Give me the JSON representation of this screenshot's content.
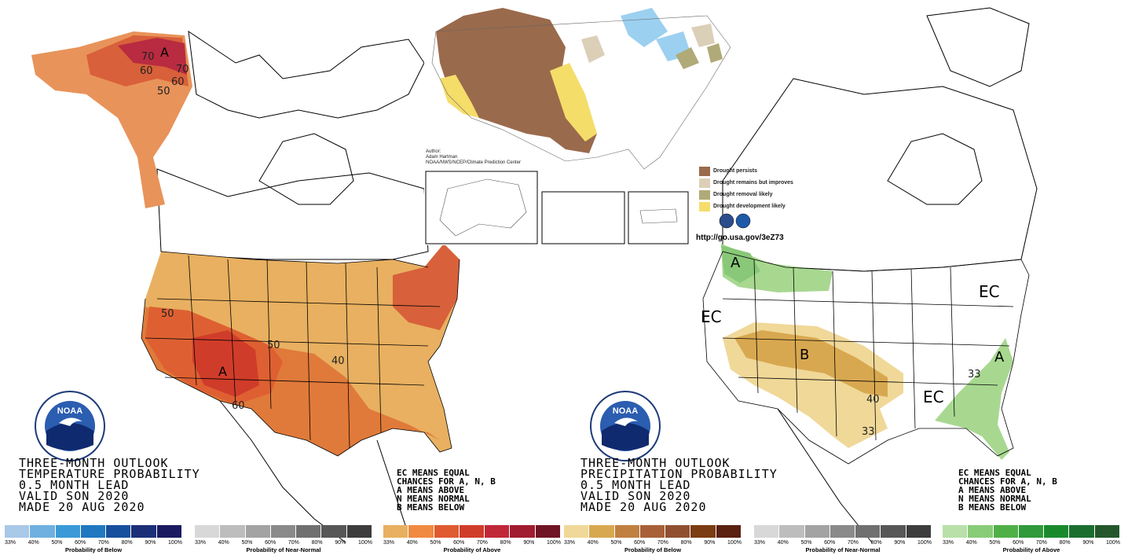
{
  "temperature_map": {
    "title_lines": [
      "THREE-MONTH OUTLOOK",
      "TEMPERATURE PROBABILITY",
      "0.5 MONTH LEAD",
      "VALID SON 2020",
      "MADE 20 AUG 2020"
    ],
    "legend_lines": [
      "EC MEANS EQUAL",
      "CHANCES FOR A, N, B",
      "A MEANS ABOVE",
      "N MEANS NORMAL",
      "B MEANS BELOW"
    ],
    "center_labels": [
      "A",
      "A"
    ],
    "contour_labels": [
      "70",
      "60",
      "70",
      "60",
      "50",
      "50",
      "50",
      "40",
      "60"
    ]
  },
  "precipitation_map": {
    "title_lines": [
      "THREE-MONTH OUTLOOK",
      "PRECIPITATION PROBABILITY",
      "0.5 MONTH LEAD",
      "VALID SON 2020",
      "MADE 20 AUG 2020"
    ],
    "legend_lines": [
      "EC MEANS EQUAL",
      "CHANCES FOR A, N, B",
      "A MEANS ABOVE",
      "N MEANS NORMAL",
      "B MEANS BELOW"
    ],
    "center_labels": [
      "A",
      "B",
      "A",
      "EC",
      "EC",
      "EC"
    ],
    "contour_labels": [
      "40",
      "33",
      "33"
    ]
  },
  "color_scales": [
    {
      "caption": "Probability of Below",
      "ticks": [
        "33%",
        "40%",
        "50%",
        "60%",
        "70%",
        "80%",
        "90%",
        "100%"
      ],
      "colors": [
        "#a8c8e8",
        "#6fb0e0",
        "#3a9ad8",
        "#1f78c0",
        "#17509c",
        "#1c2f78",
        "#1a1a60"
      ]
    },
    {
      "caption": "Probability of Near-Normal",
      "ticks": [
        "33%",
        "40%",
        "50%",
        "60%",
        "70%",
        "80%",
        "90%",
        "100%"
      ],
      "colors": [
        "#d8d8d8",
        "#bdbdbd",
        "#a3a3a3",
        "#8a8a8a",
        "#707070",
        "#575757",
        "#3d3d3d"
      ]
    },
    {
      "caption": "Probability of Above",
      "ticks": [
        "33%",
        "40%",
        "50%",
        "60%",
        "70%",
        "80%",
        "90%",
        "100%"
      ],
      "colors": [
        "#e8b060",
        "#f08a40",
        "#e05a30",
        "#d03c2a",
        "#c02838",
        "#a01c30",
        "#6e1424"
      ]
    },
    {
      "caption": "Probability of Below",
      "ticks": [
        "33%",
        "40%",
        "50%",
        "60%",
        "70%",
        "80%",
        "90%",
        "100%"
      ],
      "colors": [
        "#f0d898",
        "#d8a850",
        "#c08040",
        "#a86038",
        "#905030",
        "#7a3c10",
        "#5a2010"
      ]
    },
    {
      "caption": "Probability of Near-Normal",
      "ticks": [
        "33%",
        "40%",
        "50%",
        "60%",
        "70%",
        "80%",
        "90%",
        "100%"
      ],
      "colors": [
        "#d8d8d8",
        "#bdbdbd",
        "#a3a3a3",
        "#8a8a8a",
        "#707070",
        "#575757",
        "#3d3d3d"
      ]
    },
    {
      "caption": "Probability of Above",
      "ticks": [
        "33%",
        "40%",
        "50%",
        "60%",
        "70%",
        "80%",
        "90%",
        "100%"
      ],
      "colors": [
        "#b8e0a8",
        "#88cc78",
        "#50b048",
        "#2e9a3a",
        "#198a2c",
        "#1b6e30",
        "#24582c"
      ]
    }
  ],
  "drought_inset": {
    "author_lines": [
      "Author:",
      "Adam Hartman",
      "NOAA/NWS/NCEP/Climate Prediction Center"
    ],
    "legend": [
      {
        "label": "Drought persists",
        "color": "#9a6a4c"
      },
      {
        "label": "Drought remains but improves",
        "color": "#dccfb8"
      },
      {
        "label": "Drought removal likely",
        "color": "#b0aa78"
      },
      {
        "label": "Drought development likely",
        "color": "#f5dd6a"
      }
    ],
    "url": "http://go.usa.gov/3eZ73"
  },
  "logo": {
    "text": "NOAA"
  }
}
